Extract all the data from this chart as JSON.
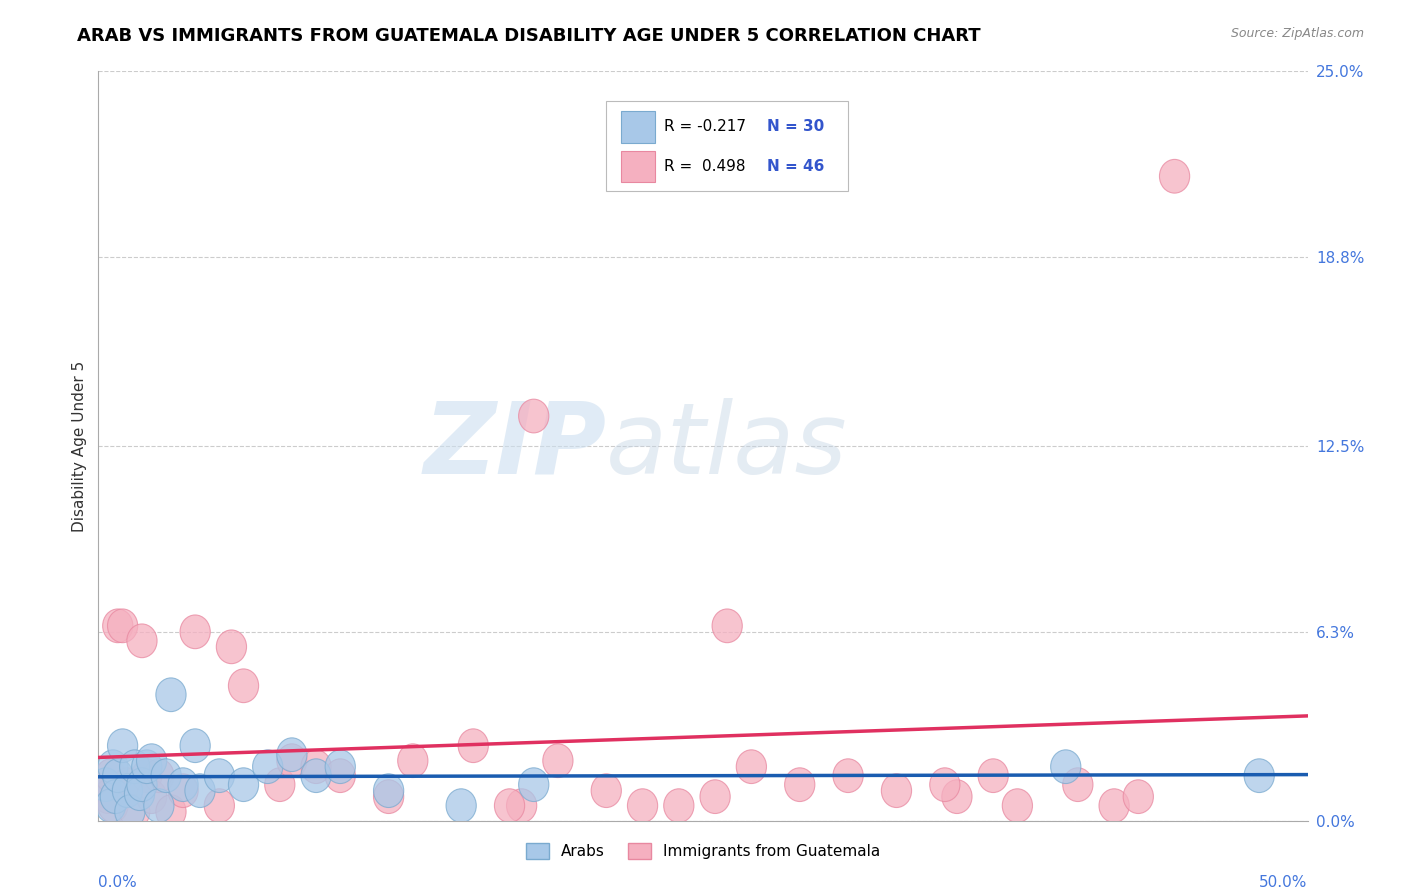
{
  "title": "ARAB VS IMMIGRANTS FROM GUATEMALA DISABILITY AGE UNDER 5 CORRELATION CHART",
  "source": "Source: ZipAtlas.com",
  "ylabel": "Disability Age Under 5",
  "ytick_values": [
    0.0,
    6.3,
    12.5,
    18.8,
    25.0
  ],
  "xmin": 0.0,
  "xmax": 50.0,
  "ymin": 0.0,
  "ymax": 25.0,
  "color_arab": "#a8c8e8",
  "color_guate": "#f5b0c0",
  "color_arab_line": "#1a5cb0",
  "color_guate_line": "#e03060",
  "arab_x": [
    0.3,
    0.5,
    0.6,
    0.7,
    0.8,
    1.0,
    1.2,
    1.3,
    1.5,
    1.7,
    1.8,
    2.0,
    2.2,
    2.5,
    2.8,
    3.0,
    3.5,
    4.0,
    4.2,
    5.0,
    6.0,
    7.0,
    8.0,
    9.0,
    10.0,
    12.0,
    15.0,
    18.0,
    40.0,
    48.0
  ],
  "arab_y": [
    1.2,
    0.5,
    1.8,
    0.8,
    1.5,
    2.5,
    1.0,
    0.3,
    1.8,
    0.9,
    1.2,
    1.8,
    2.0,
    0.5,
    1.5,
    4.2,
    1.2,
    2.5,
    1.0,
    1.5,
    1.2,
    1.8,
    2.2,
    1.5,
    1.8,
    1.0,
    0.5,
    1.2,
    1.8,
    1.5
  ],
  "guate_x": [
    0.2,
    0.4,
    0.5,
    0.6,
    0.8,
    1.0,
    1.2,
    1.5,
    1.8,
    2.0,
    2.2,
    2.5,
    3.0,
    3.5,
    4.0,
    5.0,
    5.5,
    6.0,
    7.5,
    8.0,
    9.0,
    10.0,
    12.0,
    13.0,
    15.5,
    17.5,
    18.0,
    19.0,
    21.0,
    22.5,
    24.0,
    25.5,
    27.0,
    29.0,
    31.0,
    33.0,
    35.5,
    37.0,
    38.0,
    40.5,
    42.0,
    43.0,
    44.5,
    26.0,
    17.0,
    35.0
  ],
  "guate_y": [
    1.0,
    0.8,
    1.5,
    0.5,
    6.5,
    6.5,
    1.2,
    0.3,
    6.0,
    1.5,
    0.8,
    1.5,
    0.3,
    1.0,
    6.3,
    0.5,
    5.8,
    4.5,
    1.2,
    2.0,
    1.8,
    1.5,
    0.8,
    2.0,
    2.5,
    0.5,
    13.5,
    2.0,
    1.0,
    0.5,
    0.5,
    0.8,
    1.8,
    1.2,
    1.5,
    1.0,
    0.8,
    1.5,
    0.5,
    1.2,
    0.5,
    0.8,
    21.5,
    6.5,
    0.5,
    1.2
  ]
}
